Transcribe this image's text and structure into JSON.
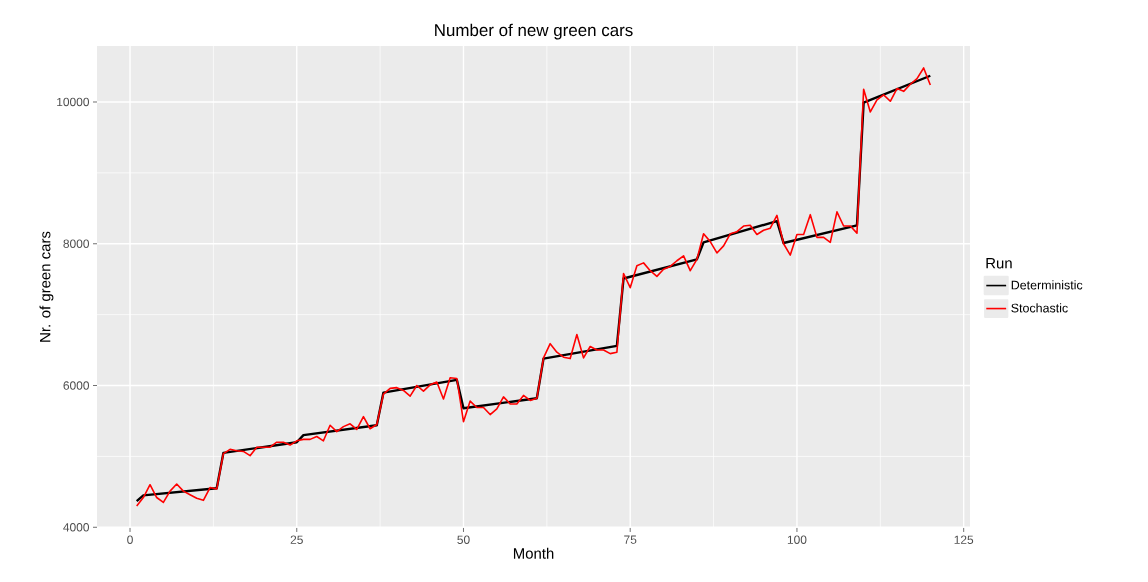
{
  "chart_data": {
    "type": "line",
    "title": "Number of new green cars",
    "xlabel": "Month",
    "ylabel": "Nr. of green cars",
    "legend_title": "Run",
    "legend": "right",
    "grid": true,
    "xlim": [
      -4.95,
      125.95
    ],
    "ylim": [
      3990,
      10790
    ],
    "xticks": [
      0,
      25,
      50,
      75,
      100,
      125
    ],
    "yticks": [
      4000,
      6000,
      8000,
      10000
    ],
    "series": [
      {
        "name": "Deterministic",
        "color": "#000000",
        "x": [
          1,
          2,
          13,
          14,
          25,
          26,
          37,
          38,
          49,
          50,
          61,
          62,
          73,
          74,
          85,
          86,
          97,
          98,
          109,
          110,
          120
        ],
        "values": [
          4370,
          4450,
          4550,
          5050,
          5200,
          5300,
          5440,
          5900,
          6080,
          5680,
          5820,
          6380,
          6560,
          7510,
          7780,
          8020,
          8320,
          8010,
          8260,
          9990,
          10370
        ]
      },
      {
        "name": "Stochastic",
        "color": "#ff0000",
        "x": [
          1,
          2,
          3,
          4,
          5,
          6,
          7,
          8,
          9,
          10,
          11,
          12,
          13,
          14,
          15,
          16,
          17,
          18,
          19,
          20,
          21,
          22,
          23,
          24,
          25,
          26,
          27,
          28,
          29,
          30,
          31,
          32,
          33,
          34,
          35,
          36,
          37,
          38,
          39,
          40,
          41,
          42,
          43,
          44,
          45,
          46,
          47,
          48,
          49,
          50,
          51,
          52,
          53,
          54,
          55,
          56,
          57,
          58,
          59,
          60,
          61,
          62,
          63,
          64,
          65,
          66,
          67,
          68,
          69,
          70,
          71,
          72,
          73,
          74,
          75,
          76,
          77,
          78,
          79,
          80,
          81,
          82,
          83,
          84,
          85,
          86,
          87,
          88,
          89,
          90,
          91,
          92,
          93,
          94,
          95,
          96,
          97,
          98,
          99,
          100,
          101,
          102,
          103,
          104,
          105,
          106,
          107,
          108,
          109,
          110,
          111,
          112,
          113,
          114,
          115,
          116,
          117,
          118,
          119,
          120
        ],
        "values": [
          4300,
          4420,
          4600,
          4420,
          4350,
          4510,
          4610,
          4510,
          4460,
          4410,
          4380,
          4560,
          4540,
          5040,
          5100,
          5080,
          5070,
          5010,
          5130,
          5130,
          5130,
          5200,
          5200,
          5160,
          5220,
          5240,
          5240,
          5280,
          5220,
          5440,
          5350,
          5420,
          5460,
          5380,
          5560,
          5390,
          5450,
          5880,
          5960,
          5970,
          5930,
          5850,
          6000,
          5920,
          6010,
          6050,
          5810,
          6110,
          6100,
          5490,
          5780,
          5690,
          5690,
          5590,
          5670,
          5840,
          5740,
          5740,
          5860,
          5790,
          5820,
          6390,
          6590,
          6470,
          6400,
          6380,
          6720,
          6390,
          6550,
          6500,
          6500,
          6450,
          6470,
          7580,
          7380,
          7690,
          7730,
          7620,
          7540,
          7640,
          7680,
          7760,
          7830,
          7620,
          7780,
          8140,
          8030,
          7870,
          7970,
          8140,
          8170,
          8250,
          8260,
          8130,
          8190,
          8220,
          8400,
          8000,
          7840,
          8130,
          8130,
          8410,
          8090,
          8090,
          8020,
          8450,
          8250,
          8250,
          8150,
          10180,
          9860,
          10030,
          10100,
          10010,
          10190,
          10150,
          10250,
          10330,
          10480,
          10240
        ]
      }
    ]
  }
}
